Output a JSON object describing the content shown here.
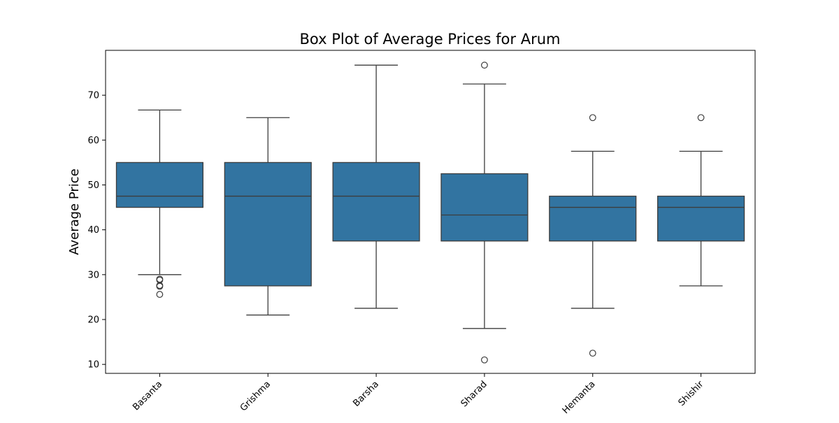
{
  "chart_data": {
    "type": "box",
    "title": "Box Plot of Average Prices for Arum",
    "xlabel": "",
    "ylabel": "Average Price",
    "ylim": [
      8,
      80
    ],
    "yticks": [
      10,
      20,
      30,
      40,
      50,
      60,
      70
    ],
    "grid": false,
    "box_color": "#3274a1",
    "line_color": "#3d3d3d",
    "categories": [
      "Basanta",
      "Grishma",
      "Barsha",
      "Sharad",
      "Hemanta",
      "Shishir"
    ],
    "boxes": [
      {
        "category": "Basanta",
        "whisker_low": 30.0,
        "q1": 45.0,
        "median": 47.5,
        "q3": 55.0,
        "whisker_high": 66.7,
        "outliers": [
          29.0,
          28.8,
          27.6,
          27.4,
          25.6
        ]
      },
      {
        "category": "Grishma",
        "whisker_low": 21.0,
        "q1": 27.5,
        "median": 47.5,
        "q3": 55.0,
        "whisker_high": 65.0,
        "outliers": []
      },
      {
        "category": "Barsha",
        "whisker_low": 22.5,
        "q1": 37.5,
        "median": 47.5,
        "q3": 55.0,
        "whisker_high": 76.7,
        "outliers": []
      },
      {
        "category": "Sharad",
        "whisker_low": 18.0,
        "q1": 37.5,
        "median": 43.3,
        "q3": 52.5,
        "whisker_high": 72.5,
        "outliers": [
          76.7,
          11.0
        ]
      },
      {
        "category": "Hemanta",
        "whisker_low": 22.5,
        "q1": 37.5,
        "median": 45.0,
        "q3": 47.5,
        "whisker_high": 57.5,
        "outliers": [
          65.0,
          12.5
        ]
      },
      {
        "category": "Shishir",
        "whisker_low": 27.5,
        "q1": 37.5,
        "median": 45.0,
        "q3": 47.5,
        "whisker_high": 57.5,
        "outliers": [
          65.0
        ]
      }
    ]
  }
}
